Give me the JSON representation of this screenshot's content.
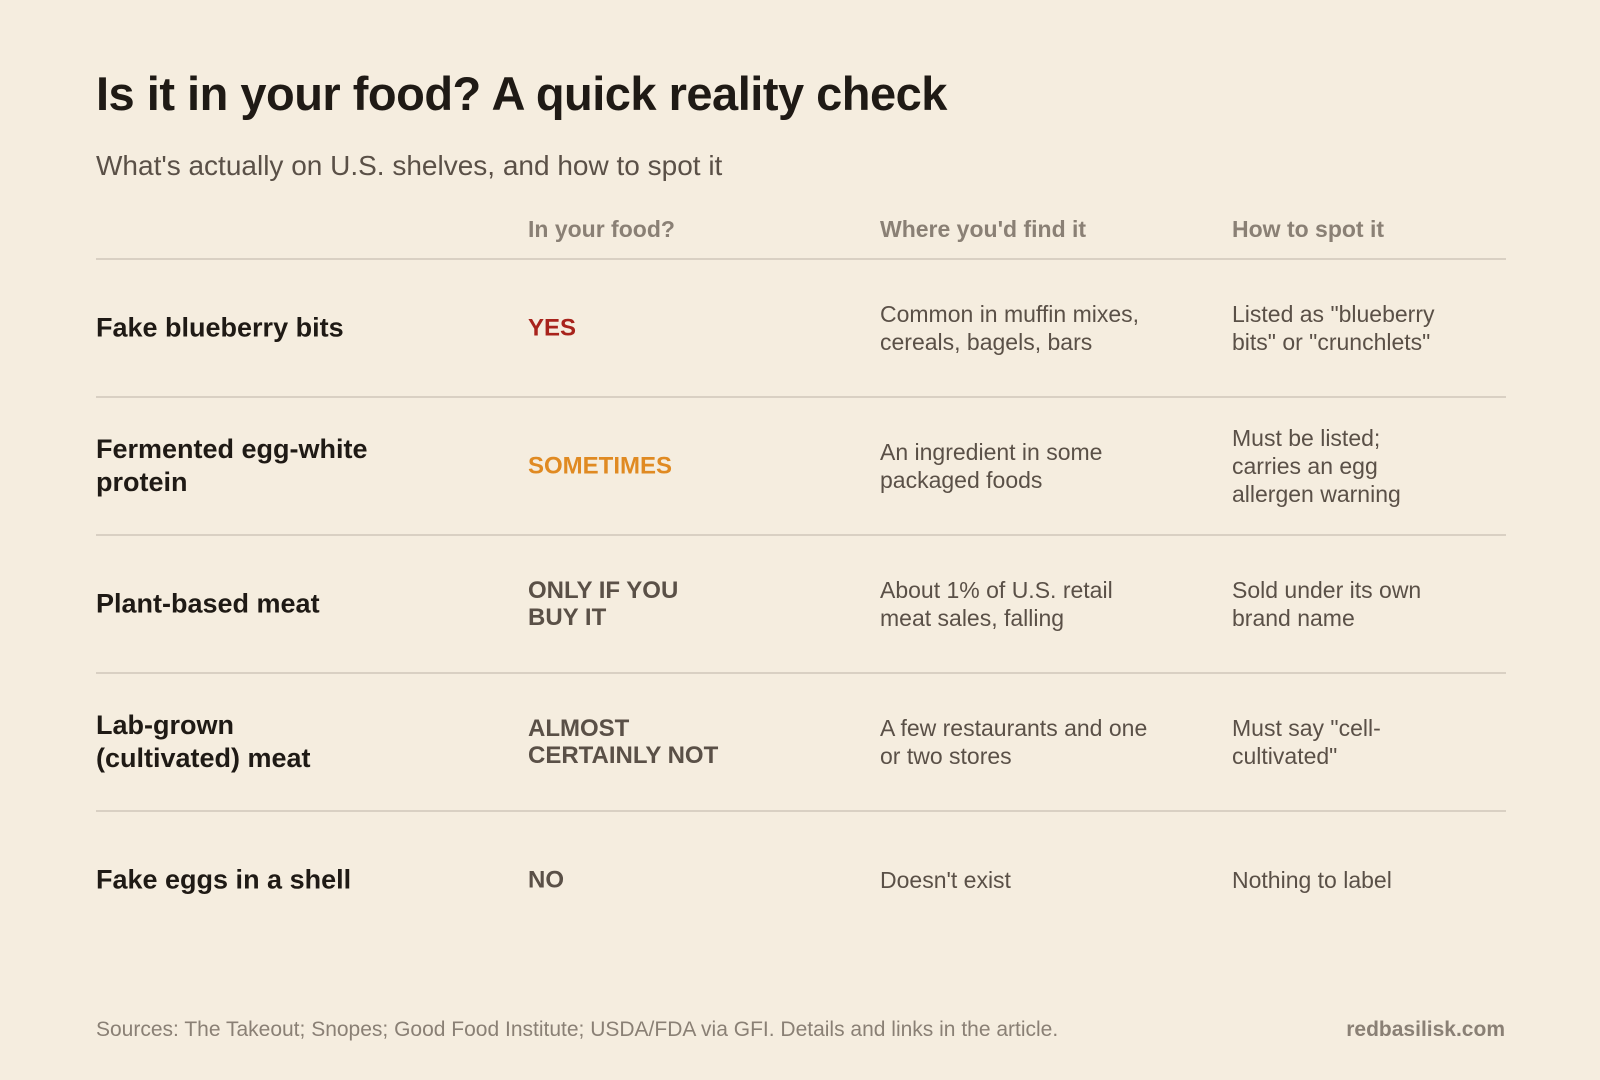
{
  "title": "Is it in your food? A quick reality check",
  "subtitle": "What's actually on U.S. shelves, and how to spot it",
  "columns": [
    "",
    "In your food?",
    "Where you'd find it",
    "How to spot it"
  ],
  "rows": [
    {
      "item": "Fake blueberry bits",
      "verdict": "YES",
      "verdict_color": "#a8231c",
      "where": "Common in muffin mixes, cereals, bagels, bars",
      "spot": "Listed as \"blueberry bits\" or \"crunchlets\""
    },
    {
      "item": "Fermented egg-white protein",
      "verdict": "SOMETIMES",
      "verdict_color": "#e08a22",
      "where": "An ingredient in some packaged foods",
      "spot": "Must be listed; carries an egg allergen warning"
    },
    {
      "item": "Plant-based meat",
      "verdict": "ONLY IF YOU BUY IT",
      "verdict_color": "#5a5047",
      "where": "About 1% of U.S. retail meat sales, falling",
      "spot": "Sold under its own brand name"
    },
    {
      "item": "Lab-grown (cultivated) meat",
      "verdict": "ALMOST CERTAINLY NOT",
      "verdict_color": "#5a5047",
      "where": "A few restaurants and one or two stores",
      "spot": "Must say \"cell-cultivated\""
    },
    {
      "item": "Fake eggs in a shell",
      "verdict": "NO",
      "verdict_color": "#5a5047",
      "where": "Doesn't exist",
      "spot": "Nothing to label"
    }
  ],
  "footer": {
    "sources": "Sources: The Takeout; Snopes; Good Food Institute; USDA/FDA via GFI. Details and links in the article.",
    "brand": "redbasilisk.com"
  }
}
